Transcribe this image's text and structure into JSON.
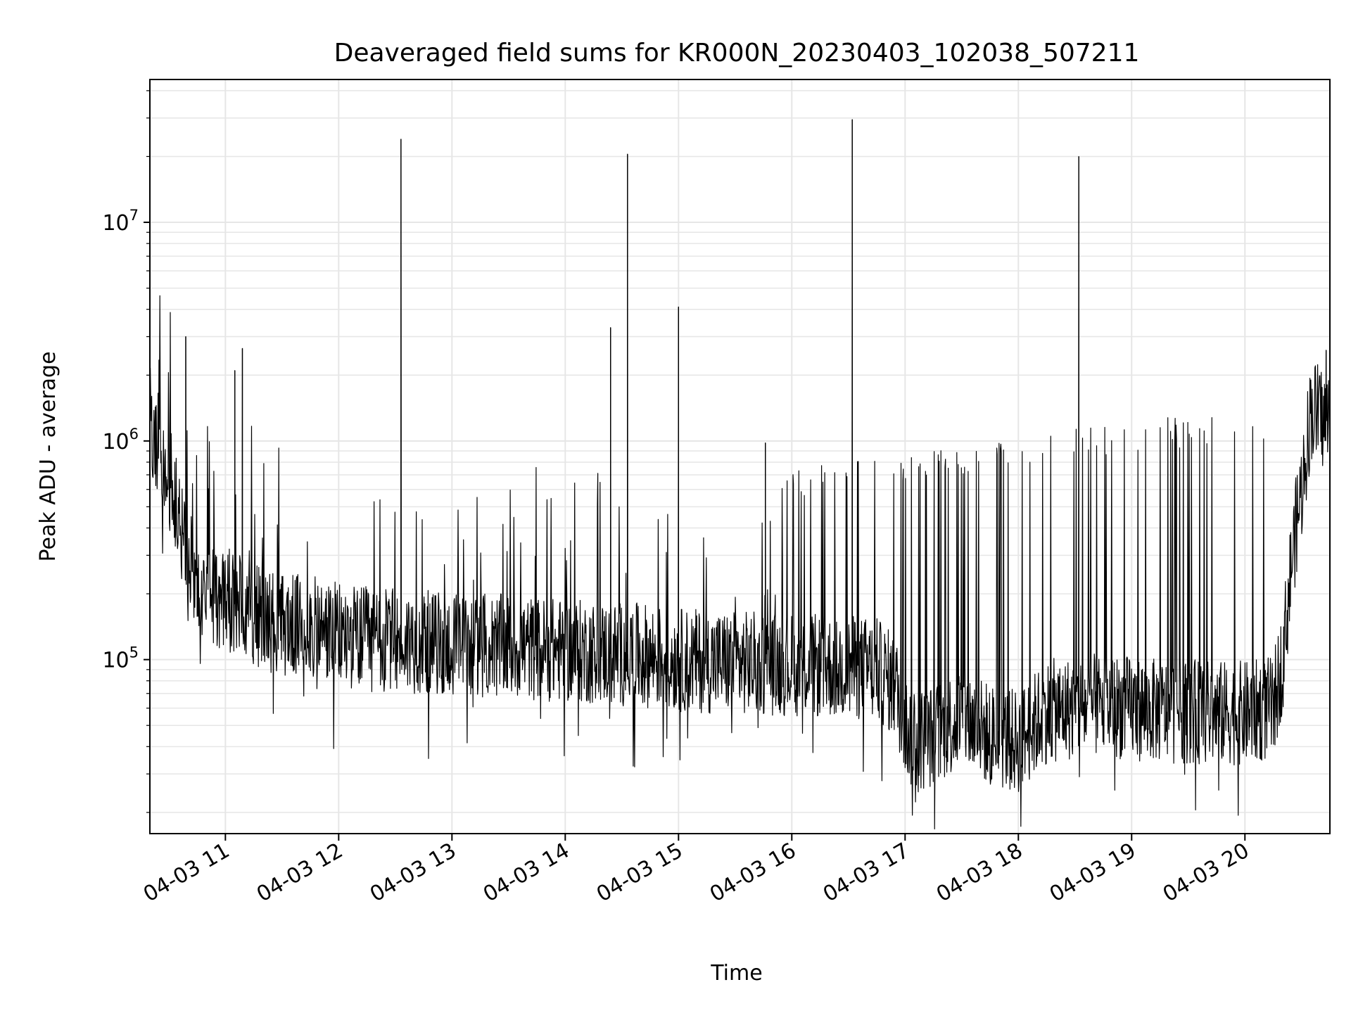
{
  "chart_data": {
    "type": "line",
    "title": "Deaveraged field sums for KR000N_20230403_102038_507211",
    "xlabel": "Time",
    "ylabel": "Peak ADU - average",
    "yscale": "log",
    "grid": true,
    "legend": "none",
    "colors": {
      "series": "#000000",
      "grid": "#e6e6e6",
      "frame": "#000000"
    },
    "x_range": [
      "2023-04-03 10:20",
      "2023-04-03 20:45"
    ],
    "ylim": [
      16000,
      45000000
    ],
    "x_ticks": [
      {
        "time": "2023-04-03 11:00",
        "label": "04-03 11"
      },
      {
        "time": "2023-04-03 12:00",
        "label": "04-03 12"
      },
      {
        "time": "2023-04-03 13:00",
        "label": "04-03 13"
      },
      {
        "time": "2023-04-03 14:00",
        "label": "04-03 14"
      },
      {
        "time": "2023-04-03 15:00",
        "label": "04-03 15"
      },
      {
        "time": "2023-04-03 16:00",
        "label": "04-03 16"
      },
      {
        "time": "2023-04-03 17:00",
        "label": "04-03 17"
      },
      {
        "time": "2023-04-03 18:00",
        "label": "04-03 18"
      },
      {
        "time": "2023-04-03 19:00",
        "label": "04-03 19"
      },
      {
        "time": "2023-04-03 20:00",
        "label": "04-03 20"
      }
    ],
    "y_ticks": [
      {
        "value": 100000,
        "label": "10",
        "exp": "5"
      },
      {
        "value": 1000000,
        "label": "10",
        "exp": "6"
      },
      {
        "value": 10000000,
        "label": "10",
        "exp": "7"
      }
    ],
    "series": [
      {
        "x": [
          "2023-04-03 10:20",
          "2023-04-03 10:24",
          "2023-04-03 10:28",
          "2023-04-03 10:32",
          "2023-04-03 10:36",
          "2023-04-03 10:40",
          "2023-04-03 10:45",
          "2023-04-03 10:50",
          "2023-04-03 11:00",
          "2023-04-03 11:10",
          "2023-04-03 11:20",
          "2023-04-03 11:30",
          "2023-04-03 11:45",
          "2023-04-03 12:00",
          "2023-04-03 12:15",
          "2023-04-03 12:30",
          "2023-04-03 12:45",
          "2023-04-03 13:00",
          "2023-04-03 13:15",
          "2023-04-03 13:30",
          "2023-04-03 13:45",
          "2023-04-03 14:00",
          "2023-04-03 14:15",
          "2023-04-03 14:30",
          "2023-04-03 14:45",
          "2023-04-03 15:00",
          "2023-04-03 15:15",
          "2023-04-03 15:30",
          "2023-04-03 15:45",
          "2023-04-03 16:00",
          "2023-04-03 16:15",
          "2023-04-03 16:30",
          "2023-04-03 16:45",
          "2023-04-03 16:55",
          "2023-04-03 17:00",
          "2023-04-03 17:05",
          "2023-04-03 17:15",
          "2023-04-03 17:30",
          "2023-04-03 17:45",
          "2023-04-03 18:00",
          "2023-04-03 18:15",
          "2023-04-03 18:30",
          "2023-04-03 18:45",
          "2023-04-03 19:00",
          "2023-04-03 19:15",
          "2023-04-03 19:30",
          "2023-04-03 19:45",
          "2023-04-03 20:00",
          "2023-04-03 20:15",
          "2023-04-03 20:20",
          "2023-04-03 20:25",
          "2023-04-03 20:30",
          "2023-04-03 20:35",
          "2023-04-03 20:45"
        ],
        "baseline": [
          1300000,
          1000000,
          800000,
          600000,
          400000,
          300000,
          230000,
          200000,
          190000,
          170000,
          155000,
          145000,
          140000,
          130000,
          125000,
          122000,
          120000,
          118000,
          117000,
          115000,
          112000,
          110000,
          108000,
          106000,
          104000,
          100000,
          98000,
          97000,
          96000,
          95000,
          93000,
          92000,
          90000,
          75000,
          50000,
          42000,
          45000,
          55000,
          45000,
          42000,
          58000,
          60000,
          62000,
          60000,
          58000,
          58000,
          57000,
          57000,
          60000,
          100000,
          300000,
          600000,
          1400000,
          1200000
        ],
        "spikes": [
          {
            "time": "2023-04-03 10:39",
            "value": 3000000
          },
          {
            "time": "2023-04-03 11:05",
            "value": 2100000
          },
          {
            "time": "2023-04-03 11:09",
            "value": 2650000
          },
          {
            "time": "2023-04-03 12:33",
            "value": 24000000
          },
          {
            "time": "2023-04-03 14:24",
            "value": 3300000
          },
          {
            "time": "2023-04-03 14:33",
            "value": 20500000
          },
          {
            "time": "2023-04-03 15:00",
            "value": 4100000
          },
          {
            "time": "2023-04-03 15:46",
            "value": 980000
          },
          {
            "time": "2023-04-03 16:32",
            "value": 29500000
          },
          {
            "time": "2023-04-03 18:32",
            "value": 20000000
          },
          {
            "time": "2023-04-03 20:43",
            "value": 2600000
          }
        ]
      }
    ]
  }
}
